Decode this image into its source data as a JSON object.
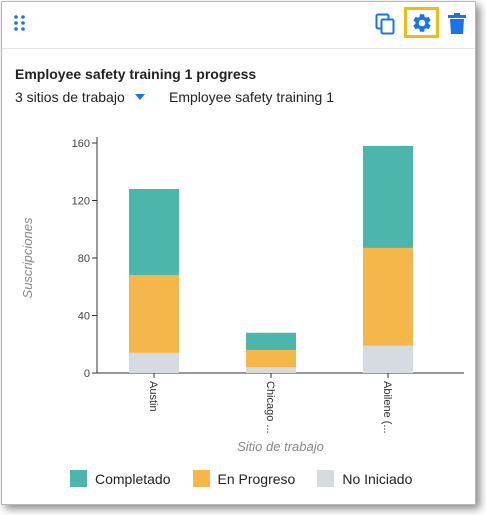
{
  "toolbar": {
    "drag_icon": "drag-handle-icon",
    "copy_icon": "copy-icon",
    "settings_icon": "gear-icon",
    "delete_icon": "trash-icon"
  },
  "widget": {
    "title": "Employee safety training 1 progress",
    "site_selector": "3 sitios de trabajo",
    "course": "Employee safety training 1"
  },
  "colors": {
    "accent": "#1a73e8",
    "highlight": "#f5b915",
    "completed": "#4db6ac",
    "in_progress": "#f5b74c",
    "not_started": "#d5dbe0"
  },
  "chart_data": {
    "type": "bar",
    "stacked": true,
    "categories": [
      "Austin",
      "Chicago ...",
      "Abilene (..."
    ],
    "series": [
      {
        "name": "No Iniciado",
        "values": [
          14,
          4,
          19
        ]
      },
      {
        "name": "En Progreso",
        "values": [
          54,
          12,
          68
        ]
      },
      {
        "name": "Completado",
        "values": [
          60,
          12,
          71
        ]
      }
    ],
    "xlabel": "Sitio de trabajo",
    "ylabel": "Suscripciones",
    "ylim": [
      0,
      160
    ],
    "yticks": [
      0,
      40,
      80,
      120,
      160
    ],
    "grid": false,
    "legend_position": "bottom"
  },
  "legend": [
    {
      "label": "Completado",
      "color": "#4db6ac"
    },
    {
      "label": "En Progreso",
      "color": "#f5b74c"
    },
    {
      "label": "No Iniciado",
      "color": "#d5dbe0"
    }
  ]
}
